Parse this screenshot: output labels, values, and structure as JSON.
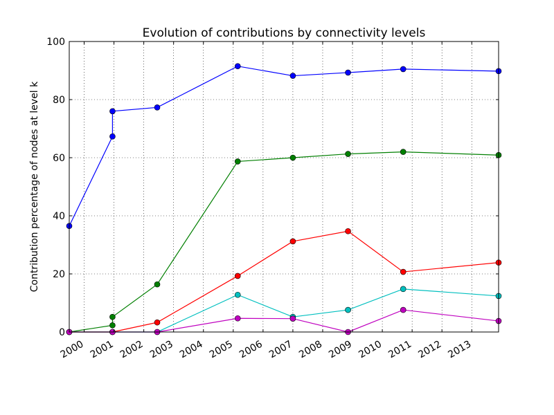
{
  "chart_data": {
    "type": "line",
    "title": "Evolution of contributions by connectivity levels",
    "xlabel": "",
    "ylabel": "Contribution percentage of nodes at level k",
    "xlim": [
      1999.5,
      2013.9
    ],
    "ylim": [
      0,
      100
    ],
    "grid": true,
    "x_ticks": [
      2000,
      2001,
      2002,
      2003,
      2004,
      2005,
      2006,
      2007,
      2008,
      2009,
      2010,
      2011,
      2012,
      2013
    ],
    "x_tick_labels": [
      "2000",
      "2001",
      "2002",
      "2003",
      "2004",
      "2005",
      "2006",
      "2007",
      "2008",
      "2009",
      "2010",
      "2011",
      "2012",
      "2013"
    ],
    "y_ticks": [
      0,
      20,
      40,
      60,
      80,
      100
    ],
    "y_tick_labels": [
      "0",
      "20",
      "40",
      "60",
      "80",
      "100"
    ],
    "series": [
      {
        "color": "#0000ff",
        "points": [
          [
            1999.5,
            36.5
          ],
          [
            2000.95,
            67.3
          ],
          [
            2000.95,
            76.0
          ],
          [
            2002.45,
            77.3
          ],
          [
            2005.15,
            91.5
          ],
          [
            2007.0,
            88.2
          ],
          [
            2008.85,
            89.3
          ],
          [
            2010.7,
            90.5
          ],
          [
            2013.9,
            89.8
          ]
        ]
      },
      {
        "color": "#007f00",
        "points": [
          [
            1999.5,
            0.0
          ],
          [
            2000.95,
            2.3
          ],
          [
            2000.95,
            5.2
          ],
          [
            2002.45,
            16.4
          ],
          [
            2005.15,
            58.7
          ],
          [
            2007.0,
            60.0
          ],
          [
            2008.85,
            61.3
          ],
          [
            2010.7,
            62.0
          ],
          [
            2013.9,
            60.9
          ]
        ]
      },
      {
        "color": "#ff0000",
        "points": [
          [
            1999.5,
            0.0
          ],
          [
            2000.95,
            0.0
          ],
          [
            2002.45,
            3.3
          ],
          [
            2005.15,
            19.3
          ],
          [
            2007.0,
            31.2
          ],
          [
            2008.85,
            34.7
          ],
          [
            2010.7,
            20.7
          ],
          [
            2013.9,
            23.9
          ]
        ]
      },
      {
        "color": "#00bfbf",
        "points": [
          [
            1999.5,
            0.0
          ],
          [
            2000.95,
            0.0
          ],
          [
            2002.45,
            0.0
          ],
          [
            2005.15,
            12.8
          ],
          [
            2007.0,
            5.2
          ],
          [
            2008.85,
            7.6
          ],
          [
            2010.7,
            14.8
          ],
          [
            2013.9,
            12.4
          ]
        ]
      },
      {
        "color": "#bf00bf",
        "points": [
          [
            1999.5,
            0.0
          ],
          [
            2000.95,
            0.0
          ],
          [
            2002.45,
            0.0
          ],
          [
            2005.15,
            4.7
          ],
          [
            2007.0,
            4.6
          ],
          [
            2008.85,
            0.0
          ],
          [
            2010.7,
            7.6
          ],
          [
            2013.9,
            3.8
          ]
        ]
      }
    ]
  }
}
